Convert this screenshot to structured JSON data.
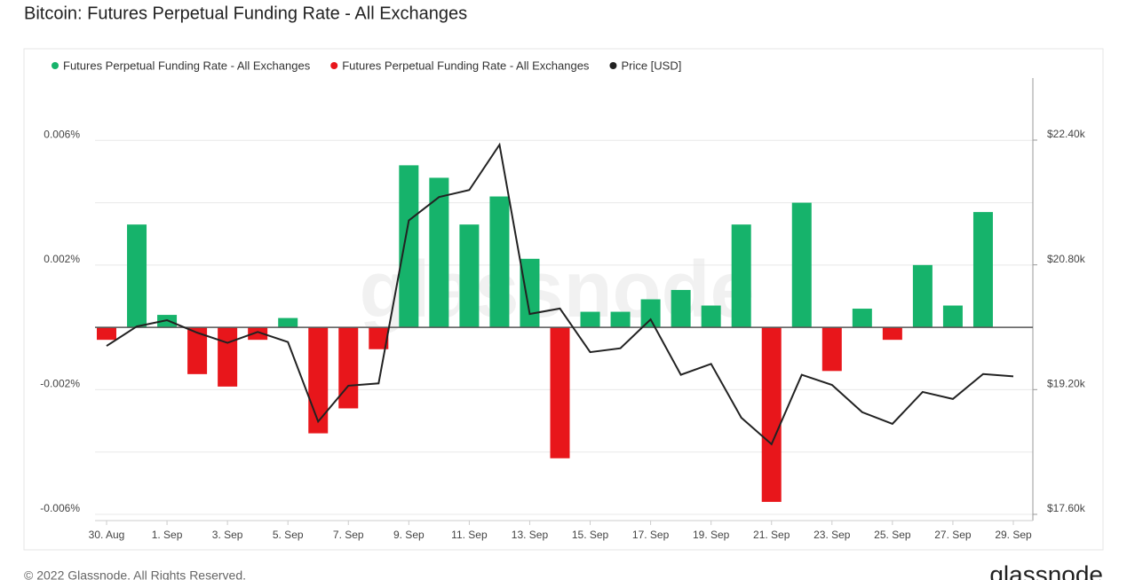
{
  "chart_data": {
    "type": "bar",
    "title": "Bitcoin: Futures Perpetual Funding Rate - All Exchanges",
    "watermark": "glassnode",
    "footer": "© 2022 Glassnode. All Rights Reserved.",
    "logo": "glassnode",
    "categories": [
      "30. Aug",
      null,
      "1. Sep",
      null,
      "3. Sep",
      null,
      "5. Sep",
      null,
      "7. Sep",
      null,
      "9. Sep",
      null,
      "11. Sep",
      null,
      "13. Sep",
      null,
      "15. Sep",
      null,
      "17. Sep",
      null,
      "19. Sep",
      null,
      "21. Sep",
      null,
      "23. Sep",
      null,
      "25. Sep",
      null,
      "27. Sep",
      null,
      "29. Sep"
    ],
    "series": [
      {
        "name": "Futures Perpetual Funding Rate - All Exchanges",
        "color": "#16b36b",
        "values": [
          null,
          0.0033,
          0.0004,
          null,
          null,
          null,
          0.0003,
          null,
          null,
          null,
          0.0052,
          0.0048,
          0.0033,
          0.0042,
          0.0022,
          null,
          0.0005,
          0.0005,
          0.0009,
          0.0012,
          0.0007,
          0.0033,
          null,
          0.004,
          null,
          0.0006,
          null,
          0.002,
          0.0007,
          0.0037,
          null
        ]
      },
      {
        "name": "Futures Perpetual Funding Rate - All Exchanges",
        "color": "#e8161b",
        "values": [
          -0.0004,
          null,
          null,
          -0.0015,
          -0.0019,
          -0.0004,
          null,
          -0.0034,
          -0.0026,
          -0.0007,
          null,
          null,
          null,
          null,
          null,
          -0.0042,
          null,
          null,
          null,
          null,
          null,
          null,
          -0.0056,
          null,
          -0.0014,
          null,
          -0.0004,
          null,
          null,
          null,
          null
        ]
      },
      {
        "name": "Price [USD]",
        "color": "#222222",
        "axis": "y2",
        "type": "line",
        "values": [
          19760,
          20010,
          20090,
          19930,
          19800,
          19940,
          19810,
          18790,
          19250,
          19280,
          21370,
          21670,
          21760,
          22340,
          20170,
          20240,
          19680,
          19730,
          20100,
          19390,
          19530,
          18840,
          18500,
          19390,
          19260,
          18910,
          18760,
          19170,
          19080,
          19400,
          19370
        ]
      }
    ],
    "ylim": [
      -0.0062,
      0.008
    ],
    "yticks": [
      {
        "value": 0.006,
        "label": "0.006%"
      },
      {
        "value": 0.002,
        "label": "0.002%"
      },
      {
        "value": -0.002,
        "label": "-0.002%"
      },
      {
        "value": -0.006,
        "label": "-0.006%"
      }
    ],
    "minor_yticks": [
      0.004,
      -0.004
    ],
    "y2lim": [
      17520,
      23196
    ],
    "y2ticks": [
      {
        "value": 22400,
        "label": "$22.40k"
      },
      {
        "value": 20800,
        "label": "$20.80k"
      },
      {
        "value": 19200,
        "label": "$19.20k"
      },
      {
        "value": 17600,
        "label": "$17.60k"
      }
    ],
    "grid": true
  }
}
